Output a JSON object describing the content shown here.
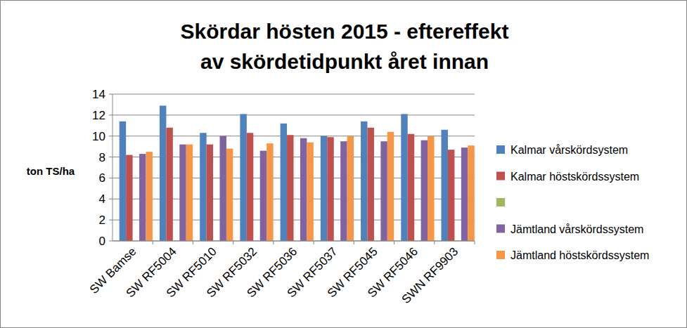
{
  "chart_data": {
    "type": "bar",
    "title": "Skördar hösten 2015 - eftereffekt av skördetidpunkt året innan",
    "y_label": "ton TS/ha",
    "categories": [
      "SW Bamse",
      "SW RF5004",
      "SW RF5010",
      "SW RF5032",
      "SW RF5036",
      "SW RF5037",
      "SW RF5045",
      "SW RF5046",
      "SWN RF9903"
    ],
    "series": [
      {
        "name": "Kalmar vårskördsystem",
        "color": "#4f81bd",
        "values": [
          11.4,
          12.9,
          10.3,
          12.1,
          11.2,
          10.0,
          11.4,
          12.1,
          10.6
        ]
      },
      {
        "name": "Kalmar höstskördssystem",
        "color": "#c0504d",
        "values": [
          8.2,
          10.8,
          9.2,
          10.3,
          10.1,
          9.9,
          10.8,
          10.2,
          8.7
        ]
      },
      {
        "name": null,
        "color": "#9bbb59",
        "values": [
          null,
          null,
          null,
          null,
          null,
          null,
          null,
          null,
          null
        ]
      },
      {
        "name": "Jämtland vårskördssystem",
        "color": "#8064a2",
        "values": [
          8.3,
          9.2,
          10.0,
          8.6,
          9.8,
          9.5,
          9.5,
          9.6,
          8.9
        ]
      },
      {
        "name": "Jämtland höstskördssystem",
        "color": "#f79646",
        "values": [
          8.5,
          9.2,
          8.8,
          9.3,
          9.4,
          10.0,
          10.4,
          10.0,
          9.1
        ]
      }
    ],
    "ylim": [
      0,
      14
    ],
    "yticks": [
      0,
      2,
      4,
      6,
      8,
      10,
      12,
      14
    ],
    "grid": true,
    "legend": "right"
  }
}
